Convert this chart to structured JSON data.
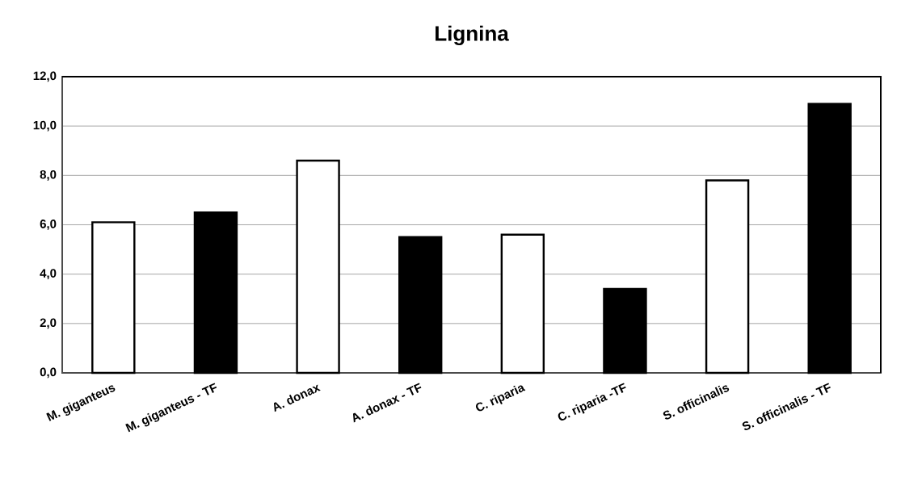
{
  "chart_data": {
    "type": "bar",
    "title": "Lignina",
    "categories": [
      "M. giganteus",
      "M. giganteus - TF",
      "A. donax",
      "A. donax - TF",
      "C. riparia",
      "C. riparia -TF",
      "S. officinalis",
      "S. officinalis - TF"
    ],
    "values": [
      6.1,
      6.5,
      8.6,
      5.5,
      5.6,
      3.4,
      7.8,
      10.9
    ],
    "colors": [
      "#ffffff",
      "#000000",
      "#ffffff",
      "#000000",
      "#ffffff",
      "#000000",
      "#ffffff",
      "#000000"
    ],
    "ylim": [
      0,
      12
    ],
    "yticks": [
      {
        "value": 0,
        "label": "0,0"
      },
      {
        "value": 2,
        "label": "2,0"
      },
      {
        "value": 4,
        "label": "4,0"
      },
      {
        "value": 6,
        "label": "6,0"
      },
      {
        "value": 8,
        "label": "8,0"
      },
      {
        "value": 10,
        "label": "10,0"
      },
      {
        "value": 12,
        "label": "12,0"
      }
    ],
    "grid": "y"
  }
}
